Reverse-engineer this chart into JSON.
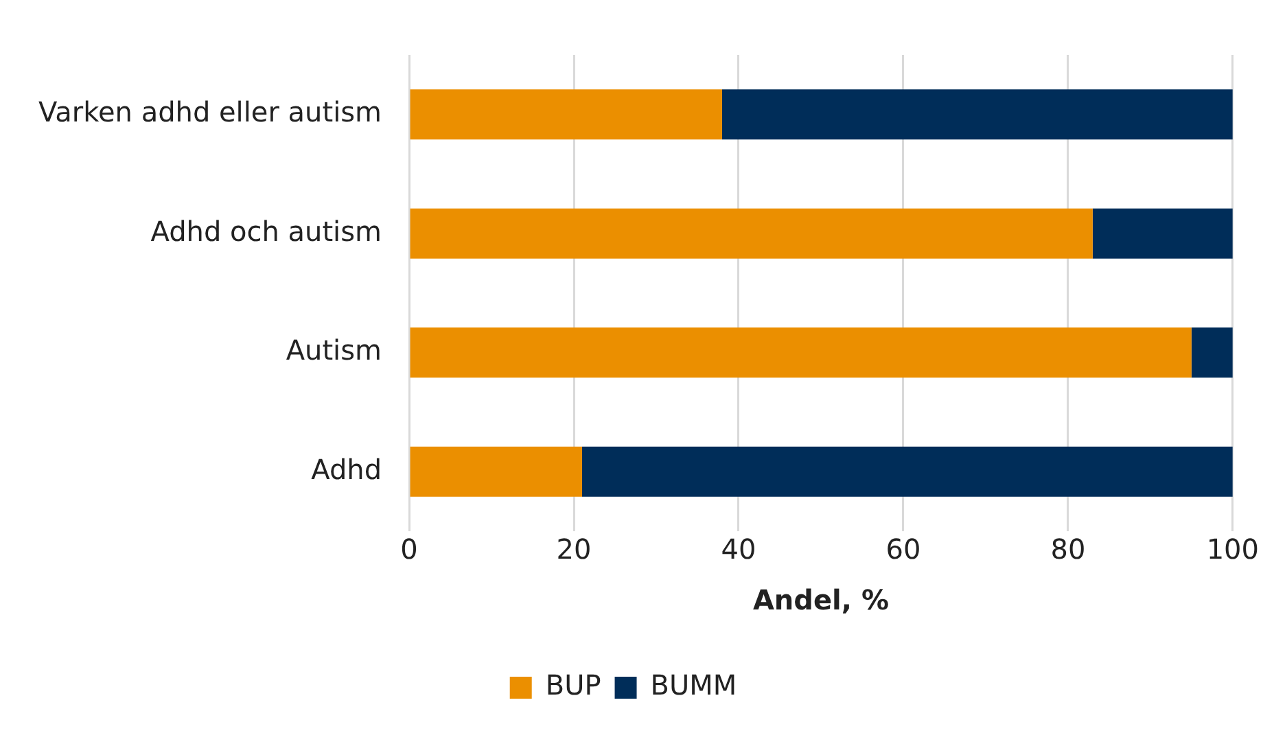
{
  "chart_data": {
    "type": "bar",
    "orientation": "horizontal",
    "stacked": true,
    "xlabel": "Andel, %",
    "categories": [
      "Varken adhd eller autism",
      "Adhd och autism",
      "Autism",
      "Adhd"
    ],
    "series": [
      {
        "name": "BUP",
        "color": "#eb8f00",
        "values": [
          38,
          83,
          95,
          21
        ]
      },
      {
        "name": "BUMM",
        "color": "#002d59",
        "values": [
          62,
          17,
          5,
          79
        ]
      }
    ],
    "xlim": [
      0,
      100
    ],
    "xticks": [
      0,
      20,
      40,
      60,
      80,
      100
    ],
    "grid": "x",
    "legend": "bottom"
  }
}
